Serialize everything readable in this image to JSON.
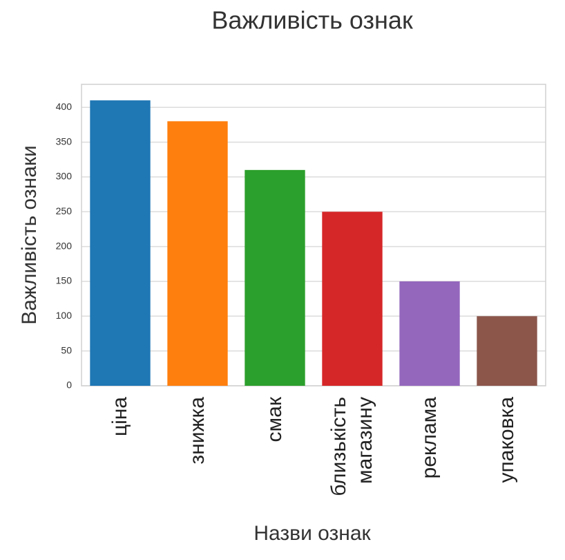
{
  "chart_data": {
    "type": "bar",
    "title": "Важливість ознак",
    "x_label": "Назви ознак",
    "y_label": "Важливість ознаки",
    "categories": [
      "ціна",
      "знижка",
      "смак",
      "близькість магазину",
      "реклама",
      "упаковка"
    ],
    "values": [
      410,
      380,
      310,
      250,
      150,
      100
    ],
    "colors": [
      "#1f77b4",
      "#ff7f0e",
      "#2ca02c",
      "#d62728",
      "#9467bd",
      "#8c564b"
    ],
    "ylim": [
      0,
      433
    ],
    "yticks": [
      0,
      50,
      100,
      150,
      200,
      250,
      300,
      350,
      400
    ],
    "grid": true
  }
}
